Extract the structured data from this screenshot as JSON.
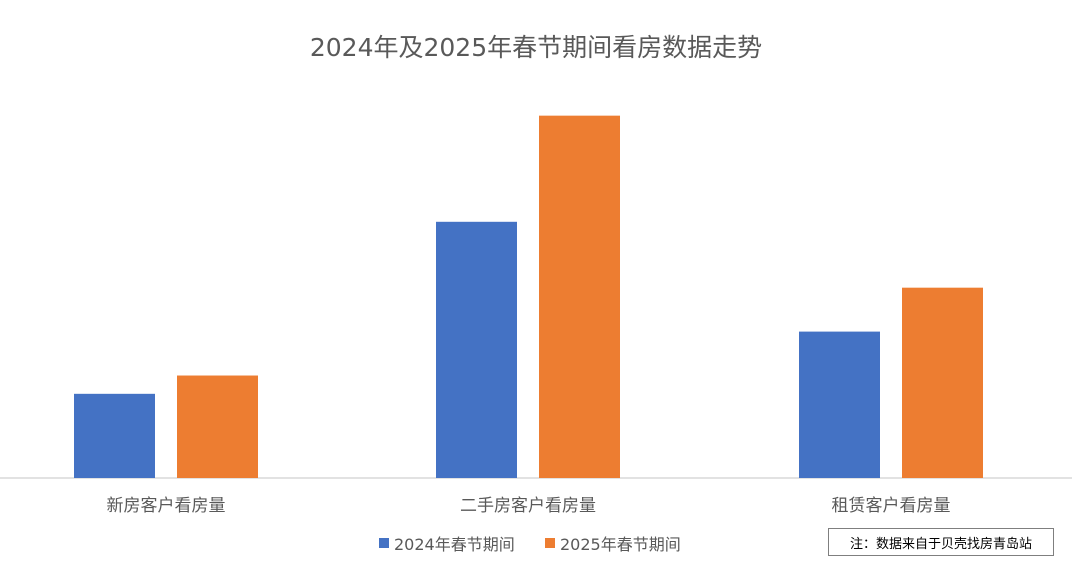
{
  "chart_data": {
    "type": "bar",
    "title": "2024年及2025年春节期间看房数据走势",
    "categories": [
      "新房客户看房量",
      "二手房客户看房量",
      "租赁客户看房量"
    ],
    "series": [
      {
        "name": "2024年春节期间",
        "color": "#4472C4",
        "values": [
          23,
          70,
          40
        ]
      },
      {
        "name": "2025年春节期间",
        "color": "#ED7D31",
        "values": [
          28,
          99,
          52
        ]
      }
    ],
    "ylim": [
      0,
      100
    ],
    "y_axis_visible": false,
    "grid": false,
    "legend": "bottom",
    "note": "注：数据来自于贝壳找房青岛站"
  }
}
